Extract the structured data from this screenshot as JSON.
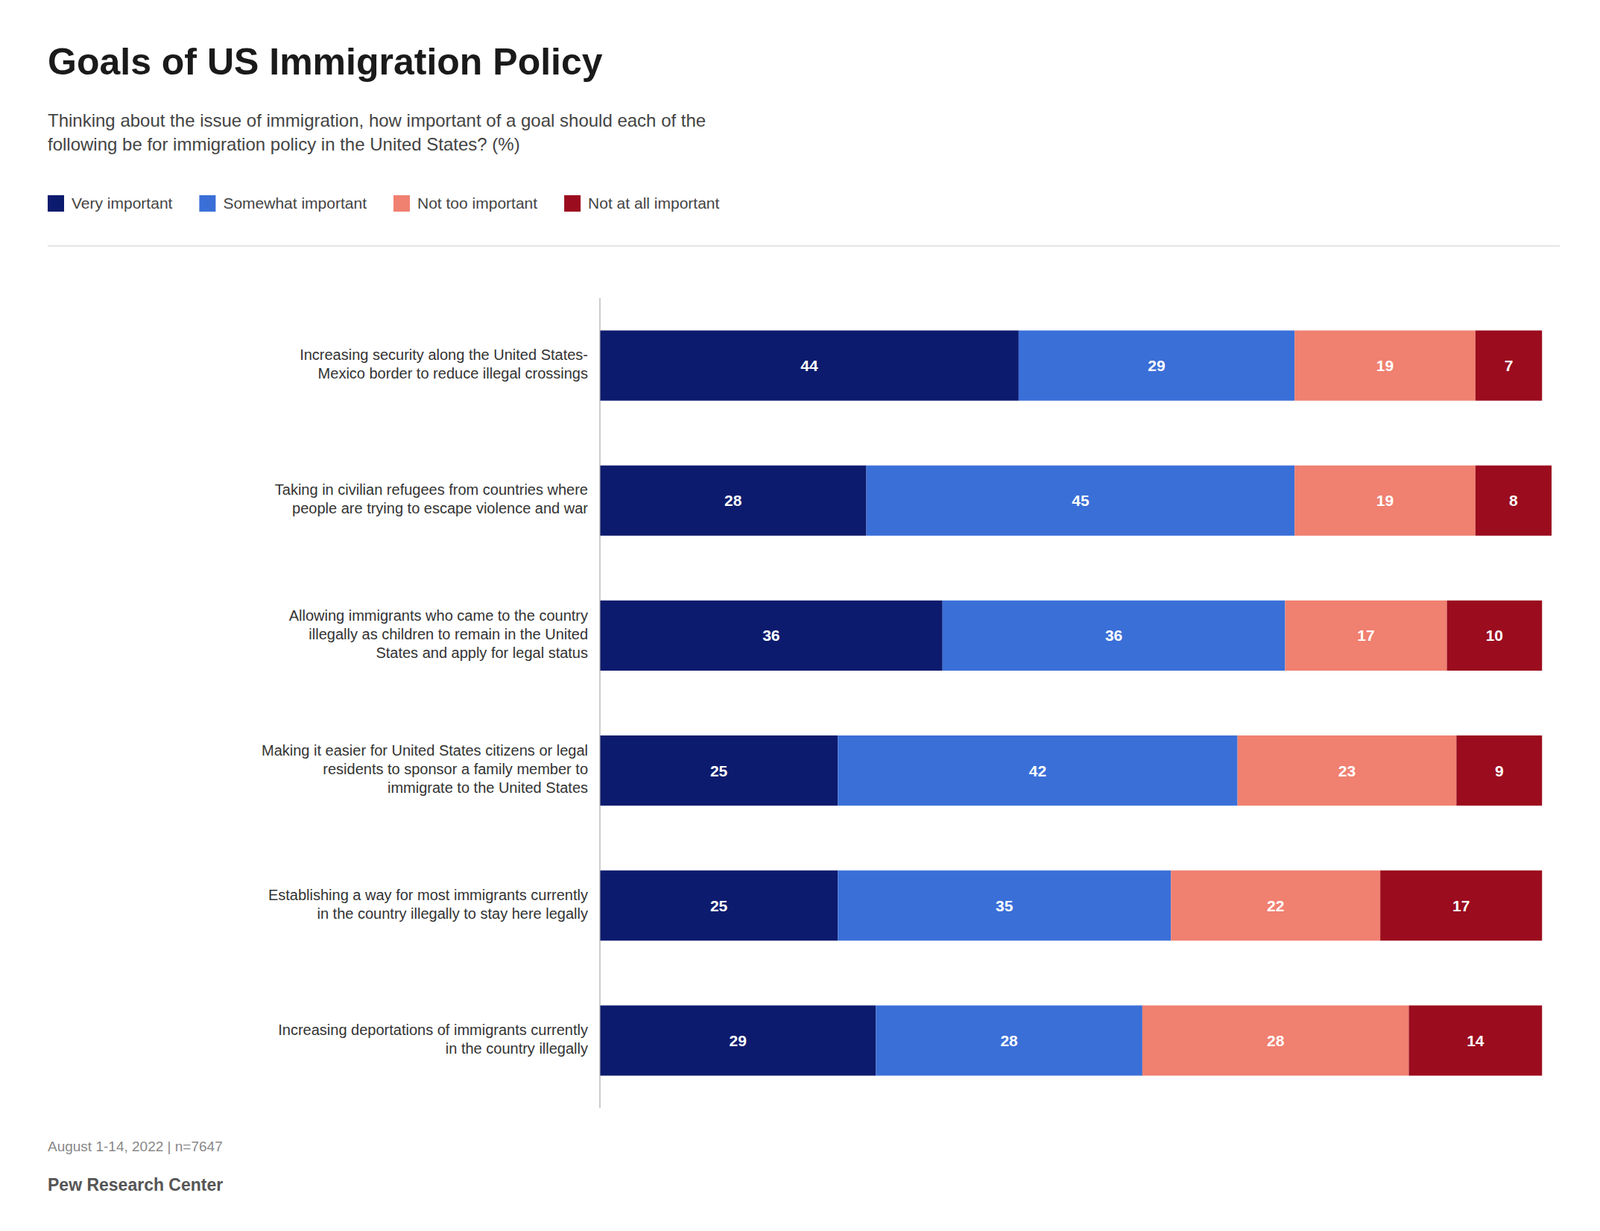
{
  "chart_data": {
    "type": "bar",
    "orientation": "horizontal",
    "stacked": true,
    "title": "Goals of US Immigration Policy",
    "subtitle": "Thinking about the issue of immigration, how important of a goal should each of the\nfollowing be for immigration policy in the United States? (%)",
    "categories": [
      "Increasing security along the United States-\nMexico border to reduce illegal crossings",
      "Taking in civilian refugees from countries where\npeople are trying to escape violence and war",
      "Allowing immigrants who came to the country\nillegally as children to remain in the United\nStates and apply for legal status",
      "Making it easier for United States citizens or legal\nresidents to sponsor a family member to\nimmigrate to the United States",
      "Establishing a way for most immigrants currently\nin the country illegally to stay here legally",
      "Increasing deportations of immigrants currently\nin the country illegally"
    ],
    "series": [
      {
        "name": "Very important",
        "color": "#0d1b6e",
        "values": [
          44,
          28,
          36,
          25,
          25,
          29
        ]
      },
      {
        "name": "Somewhat important",
        "color": "#3a6fd8",
        "values": [
          29,
          45,
          36,
          42,
          35,
          28
        ]
      },
      {
        "name": "Not too important",
        "color": "#f08070",
        "values": [
          19,
          19,
          17,
          23,
          22,
          28
        ]
      },
      {
        "name": "Not at all important",
        "color": "#9b0c1e",
        "values": [
          7,
          8,
          10,
          9,
          17,
          14
        ]
      }
    ],
    "xlim": [
      0,
      100
    ],
    "data_labels": true,
    "tick_labels": "y",
    "grid": false,
    "legend": "top",
    "annotations": [
      "August 1-14, 2022 | n=7647",
      "Pew Research Center"
    ]
  }
}
